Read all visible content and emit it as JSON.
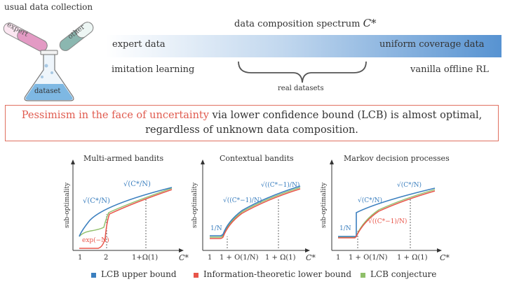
{
  "header": {
    "usual_data_collection": "usual data collection",
    "tube_expert": "expert",
    "tube_other": "other",
    "flask_label": "dataset",
    "spectrum_title": "data composition spectrum",
    "spectrum_symbol": "C*",
    "expert_data": "expert data",
    "uniform_data": "uniform coverage data",
    "imitation_learning": "imitation learning",
    "vanilla_offline_rl": "vanilla offline RL",
    "real_datasets": "real datasets"
  },
  "statement": {
    "highlight": "Pessimism in the face of uncertainty",
    "rest_line1": " via lower confidence bound (LCB) is almost optimal,",
    "line2": "regardless of unknown data composition."
  },
  "panels": [
    {
      "title": "Multi-armed bandits",
      "ylabel": "sub-optimality",
      "xlabel": "C*",
      "ticks": [
        "1",
        "2",
        "1+Ω(1)"
      ],
      "label_upper": "√(C*/N)",
      "label_sqrt_top": "√(C*/N)",
      "label_lower": "exp(−N)"
    },
    {
      "title": "Contextual bandits",
      "ylabel": "sub-optimality",
      "xlabel": "C*",
      "ticks": [
        "1",
        "1 + O(1/N)",
        "1 + Ω(1)"
      ],
      "label_flat": "1/N",
      "label_mid": "√((C*−1)/N)",
      "label_top": "√((C*−1)/N)"
    },
    {
      "title": "Markov decision processes",
      "ylabel": "sub-optimality",
      "xlabel": "C*",
      "ticks": [
        "1",
        "1 + O(1/N)",
        "1 + Ω(1)"
      ],
      "label_flat": "1/N",
      "label_upper": "√(C*/N)",
      "label_lower": "√((C*−1)/N)",
      "label_top": "√(C*/N)"
    }
  ],
  "legend": [
    {
      "label": "LCB upper bound",
      "color": "#3b7fbf"
    },
    {
      "label": "Information-theoretic lower bound",
      "color": "#e8554a"
    },
    {
      "label": "LCB conjecture",
      "color": "#8fbf6a"
    }
  ],
  "colors": {
    "blue": "#3b7fbf",
    "red": "#e8554a",
    "green": "#8fbf6a",
    "box": "#e07060"
  }
}
